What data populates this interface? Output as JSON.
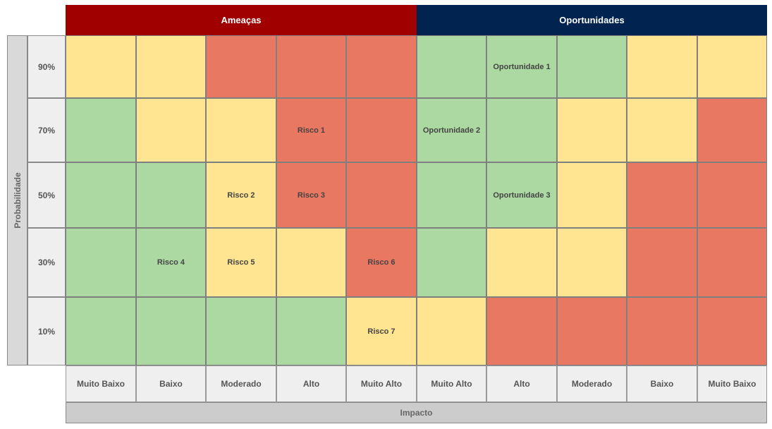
{
  "headers": {
    "threats": "Ameaças",
    "opportunities": "Oportunidades"
  },
  "y_axis_label": "Probabilidade",
  "x_axis_label": "Impacto",
  "probabilities": [
    "90%",
    "70%",
    "50%",
    "30%",
    "10%"
  ],
  "impact_labels": [
    "Muito Baixo",
    "Baixo",
    "Moderado",
    "Alto",
    "Muito Alto",
    "Muito Alto",
    "Alto",
    "Moderado",
    "Baixo",
    "Muito Baixo"
  ],
  "colors": {
    "green": "#acd9a1",
    "yellow": "#ffe491",
    "red": "#e97862",
    "threats_header": "#a10000",
    "opportunities_header": "#00244f"
  },
  "grid": [
    [
      "Y",
      "Y",
      "R",
      "R",
      "R",
      "G",
      "G",
      "G",
      "Y",
      "Y"
    ],
    [
      "G",
      "Y",
      "Y",
      "R",
      "R",
      "G",
      "G",
      "Y",
      "Y",
      "R"
    ],
    [
      "G",
      "G",
      "Y",
      "R",
      "R",
      "G",
      "G",
      "Y",
      "R",
      "R"
    ],
    [
      "G",
      "G",
      "Y",
      "Y",
      "R",
      "G",
      "Y",
      "Y",
      "R",
      "R"
    ],
    [
      "G",
      "G",
      "G",
      "G",
      "Y",
      "Y",
      "R",
      "R",
      "R",
      "R"
    ]
  ],
  "labels": [
    [
      "",
      "",
      "",
      "",
      "",
      "",
      "Oportunidade 1",
      "",
      "",
      ""
    ],
    [
      "",
      "",
      "",
      "Risco 1",
      "",
      "Oportunidade 2",
      "",
      "",
      "",
      ""
    ],
    [
      "",
      "",
      "Risco 2",
      "Risco 3",
      "",
      "",
      "Oportunidade 3",
      "",
      "",
      ""
    ],
    [
      "",
      "Risco 4",
      "Risco 5",
      "",
      "Risco 6",
      "",
      "",
      "",
      "",
      ""
    ],
    [
      "",
      "",
      "",
      "",
      "Risco 7",
      "",
      "",
      "",
      "",
      ""
    ]
  ]
}
